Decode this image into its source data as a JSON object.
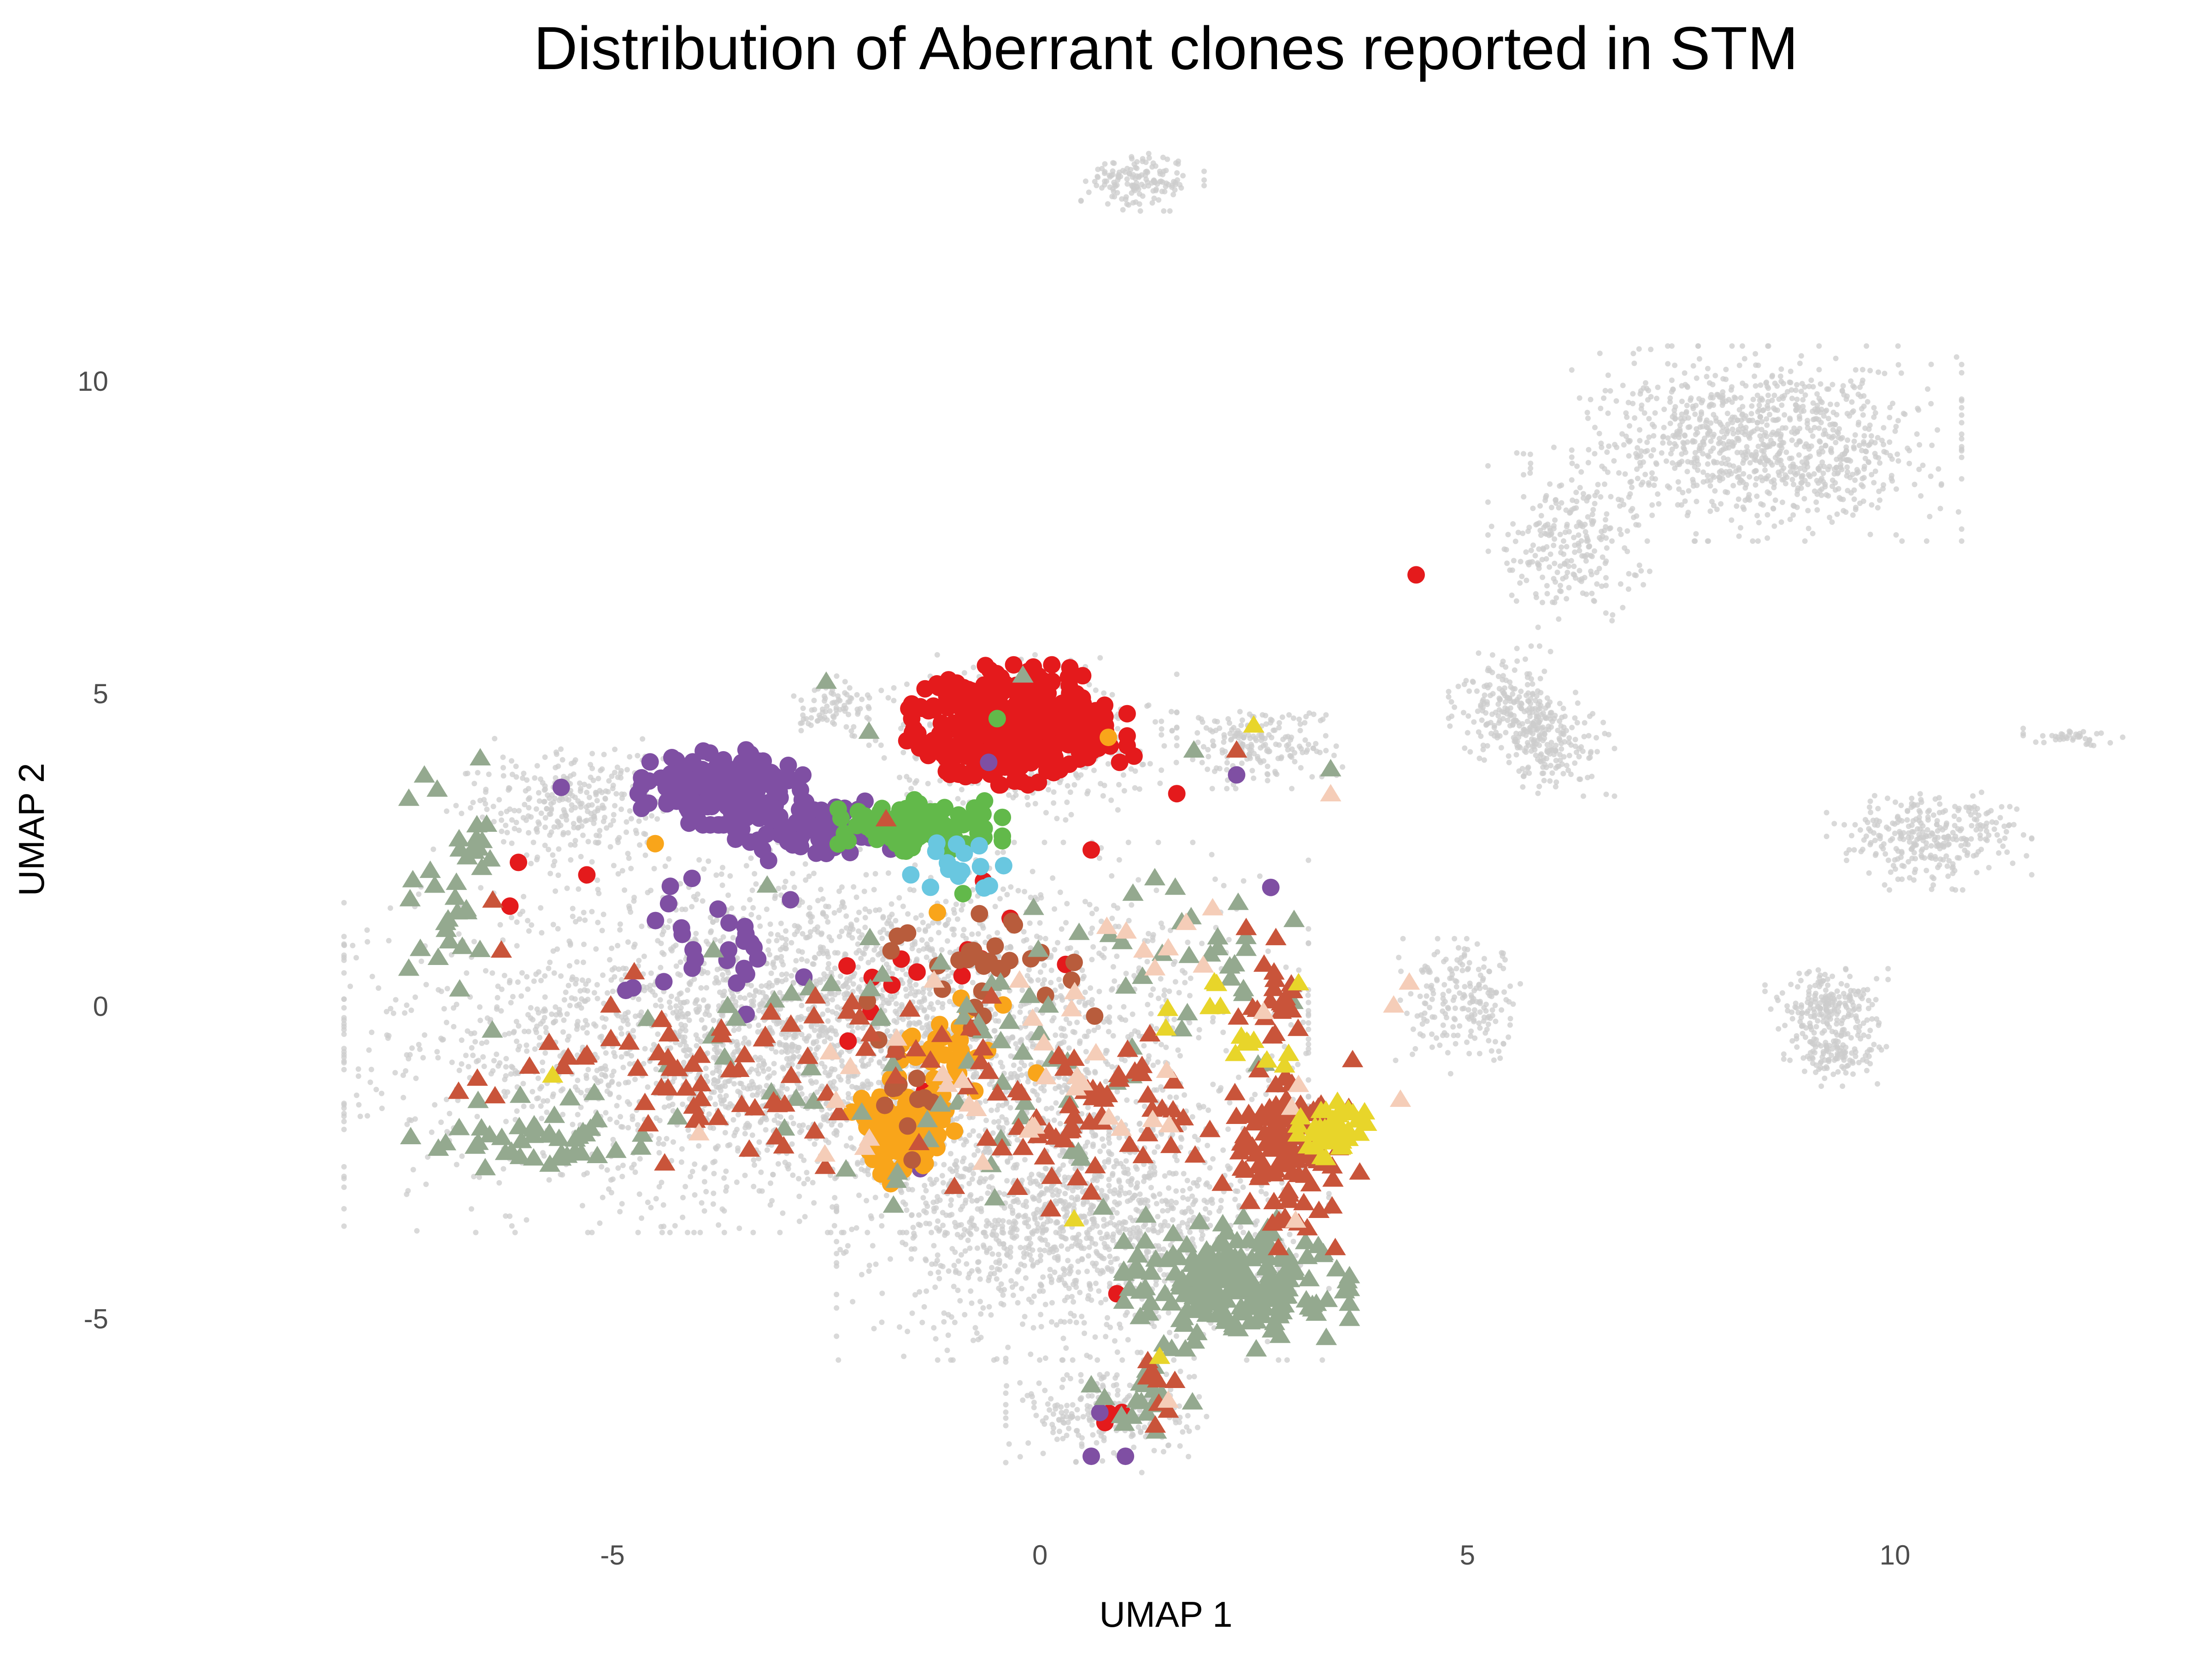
{
  "chart_data": {
    "type": "scatter",
    "title": "Distribution of Aberrant clones reported in STM",
    "xlabel": "UMAP 1",
    "ylabel": "UMAP 2",
    "xlim": [
      -9.9,
      12.9
    ],
    "ylim": [
      -8.6,
      14.4
    ],
    "xticks": [
      -5,
      0,
      5,
      10
    ],
    "xtick_labels": [
      "-5",
      "0",
      "5",
      "10"
    ],
    "yticks": [
      -5,
      0,
      5,
      10
    ],
    "ytick_labels": [
      "-5",
      "0",
      "5",
      "10"
    ],
    "grid": false,
    "legend": "none",
    "background_cells": {
      "color": "#cccccc",
      "clusters": [
        {
          "cx": -2.5,
          "cy": -0.5,
          "rx": 4.7,
          "ry": 2.6,
          "n": 3400
        },
        {
          "cx": 0.5,
          "cy": -3.5,
          "rx": 2.4,
          "ry": 1.8,
          "n": 1300
        },
        {
          "cx": 0.8,
          "cy": -6.5,
          "rx": 1.0,
          "ry": 0.8,
          "n": 250
        },
        {
          "cx": -0.2,
          "cy": 4.3,
          "rx": 1.5,
          "ry": 1.1,
          "n": 450
        },
        {
          "cx": 2.5,
          "cy": 4.2,
          "rx": 0.9,
          "ry": 0.6,
          "n": 200
        },
        {
          "cx": -5.5,
          "cy": 3.2,
          "rx": 1.2,
          "ry": 0.9,
          "n": 300
        },
        {
          "cx": 8.5,
          "cy": 9.0,
          "rx": 1.9,
          "ry": 1.3,
          "n": 1000
        },
        {
          "cx": 6.2,
          "cy": 7.5,
          "rx": 0.8,
          "ry": 1.2,
          "n": 250
        },
        {
          "cx": 5.5,
          "cy": 4.8,
          "rx": 0.6,
          "ry": 0.8,
          "n": 200
        },
        {
          "cx": 6.0,
          "cy": 4.2,
          "rx": 0.6,
          "ry": 0.7,
          "n": 180
        },
        {
          "cx": 1.2,
          "cy": 13.2,
          "rx": 0.6,
          "ry": 0.4,
          "n": 150
        },
        {
          "cx": 10.4,
          "cy": 2.7,
          "rx": 1.0,
          "ry": 0.7,
          "n": 300
        },
        {
          "cx": 9.2,
          "cy": 0.0,
          "rx": 0.6,
          "ry": 0.5,
          "n": 200
        },
        {
          "cx": 9.3,
          "cy": -0.8,
          "rx": 0.5,
          "ry": 0.4,
          "n": 120
        },
        {
          "cx": 12.1,
          "cy": 4.3,
          "rx": 0.5,
          "ry": 0.12,
          "n": 40
        },
        {
          "cx": 5.0,
          "cy": 0.0,
          "rx": 0.7,
          "ry": 0.9,
          "n": 200
        },
        {
          "cx": -2.4,
          "cy": 4.8,
          "rx": 0.4,
          "ry": 0.4,
          "n": 80
        }
      ]
    },
    "series": [
      {
        "color": "#e41a1c",
        "marker": "circle",
        "clusters": [
          {
            "cx": -0.3,
            "cy": 4.5,
            "rx": 1.1,
            "ry": 0.8,
            "n": 420
          },
          {
            "cx": -1.5,
            "cy": 0.5,
            "rx": 1.5,
            "ry": 1.6,
            "n": 14
          },
          {
            "cx": 0.7,
            "cy": -6.5,
            "rx": 0.3,
            "ry": 0.3,
            "n": 3
          }
        ],
        "points": [
          [
            4.4,
            6.9
          ],
          [
            -6.2,
            1.6
          ],
          [
            -6.1,
            2.3
          ],
          [
            -5.3,
            2.1
          ],
          [
            1.6,
            3.4
          ],
          [
            0.9,
            -4.6
          ],
          [
            1.1,
            4.0
          ],
          [
            0.6,
            2.5
          ],
          [
            -1.5,
            4.6
          ]
        ]
      },
      {
        "color": "#7f4fa3",
        "marker": "circle",
        "clusters": [
          {
            "cx": -3.7,
            "cy": 3.5,
            "rx": 0.8,
            "ry": 0.5,
            "n": 220
          },
          {
            "cx": -2.6,
            "cy": 2.8,
            "rx": 0.8,
            "ry": 0.4,
            "n": 90
          },
          {
            "cx": -3.8,
            "cy": 1.2,
            "rx": 1.1,
            "ry": 1.4,
            "n": 28
          }
        ],
        "points": [
          [
            -5.6,
            3.5
          ],
          [
            -4.7,
            3.4
          ],
          [
            2.7,
            1.9
          ],
          [
            2.3,
            3.7
          ],
          [
            0.7,
            -6.5
          ],
          [
            0.6,
            -7.2
          ],
          [
            1.0,
            -7.2
          ],
          [
            -1.4,
            -2.6
          ],
          [
            -0.6,
            3.9
          ]
        ]
      },
      {
        "color": "#62b94a",
        "marker": "circle",
        "clusters": [
          {
            "cx": -1.4,
            "cy": 2.9,
            "rx": 0.8,
            "ry": 0.35,
            "n": 120
          }
        ],
        "points": [
          [
            -0.5,
            4.6
          ],
          [
            -0.9,
            1.8
          ]
        ]
      },
      {
        "color": "#69c7e0",
        "marker": "circle",
        "clusters": [
          {
            "cx": -1.0,
            "cy": 2.2,
            "rx": 0.7,
            "ry": 0.5,
            "n": 16
          }
        ],
        "points": []
      },
      {
        "color": "#f9a51a",
        "marker": "circle",
        "clusters": [
          {
            "cx": -1.6,
            "cy": -2.0,
            "rx": 0.5,
            "ry": 0.7,
            "n": 110
          },
          {
            "cx": -1.0,
            "cy": -0.8,
            "rx": 0.8,
            "ry": 0.8,
            "n": 35
          }
        ],
        "points": [
          [
            0.8,
            4.3
          ],
          [
            -4.5,
            2.6
          ],
          [
            -1.2,
            1.5
          ]
        ]
      },
      {
        "color": "#b85c3c",
        "marker": "circle",
        "clusters": [
          {
            "cx": -0.8,
            "cy": 0.8,
            "rx": 1.2,
            "ry": 1.0,
            "n": 30
          },
          {
            "cx": -1.5,
            "cy": -1.5,
            "rx": 0.5,
            "ry": 0.8,
            "n": 12
          }
        ],
        "points": [
          [
            0.4,
            0.7
          ],
          [
            -0.3,
            1.3
          ]
        ]
      },
      {
        "color": "#94a98f",
        "marker": "triangle",
        "clusters": [
          {
            "cx": 2.3,
            "cy": -4.4,
            "rx": 1.1,
            "ry": 0.9,
            "n": 210
          },
          {
            "cx": -5.8,
            "cy": -2.1,
            "rx": 1.3,
            "ry": 0.6,
            "n": 45
          },
          {
            "cx": -6.8,
            "cy": 1.9,
            "rx": 0.6,
            "ry": 1.9,
            "n": 35
          },
          {
            "cx": -1.0,
            "cy": -0.7,
            "rx": 3.3,
            "ry": 2.2,
            "n": 70
          },
          {
            "cx": 1.2,
            "cy": -6.2,
            "rx": 0.5,
            "ry": 0.9,
            "n": 18
          },
          {
            "cx": 1.5,
            "cy": 1.0,
            "rx": 1.3,
            "ry": 1.0,
            "n": 25
          }
        ],
        "points": [
          [
            -2.5,
            5.2
          ],
          [
            -2.0,
            4.4
          ],
          [
            1.8,
            4.1
          ],
          [
            3.4,
            3.8
          ],
          [
            -0.2,
            5.3
          ],
          [
            -7.2,
            3.7
          ]
        ]
      },
      {
        "color": "#c9543a",
        "marker": "triangle",
        "clusters": [
          {
            "cx": 2.9,
            "cy": -2.3,
            "rx": 0.7,
            "ry": 1.3,
            "n": 110
          },
          {
            "cx": -3.2,
            "cy": -1.0,
            "rx": 3.0,
            "ry": 1.3,
            "n": 80
          },
          {
            "cx": 0.8,
            "cy": -1.8,
            "rx": 1.5,
            "ry": 1.2,
            "n": 60
          },
          {
            "cx": 2.8,
            "cy": 0.3,
            "rx": 0.4,
            "ry": 0.8,
            "n": 22
          },
          {
            "cx": 1.3,
            "cy": -6.1,
            "rx": 0.4,
            "ry": 0.7,
            "n": 8
          }
        ],
        "points": [
          [
            -6.4,
            1.7
          ],
          [
            -6.3,
            0.9
          ],
          [
            2.3,
            4.1
          ],
          [
            -1.8,
            3.0
          ]
        ]
      },
      {
        "color": "#f5cdb8",
        "marker": "triangle",
        "clusters": [
          {
            "cx": 0.0,
            "cy": -1.5,
            "rx": 3.6,
            "ry": 1.6,
            "n": 40
          },
          {
            "cx": 1.5,
            "cy": 1.0,
            "rx": 0.8,
            "ry": 0.6,
            "n": 8
          }
        ],
        "points": [
          [
            3.4,
            3.4
          ],
          [
            1.5,
            -6.3
          ]
        ]
      },
      {
        "color": "#e8d52a",
        "marker": "triangle",
        "clusters": [
          {
            "cx": 3.4,
            "cy": -2.0,
            "rx": 0.35,
            "ry": 0.4,
            "n": 45
          },
          {
            "cx": 2.4,
            "cy": -0.5,
            "rx": 0.9,
            "ry": 1.2,
            "n": 15
          }
        ],
        "points": [
          [
            2.5,
            4.5
          ],
          [
            -5.7,
            -1.1
          ],
          [
            1.4,
            -5.6
          ],
          [
            0.4,
            -3.4
          ]
        ]
      }
    ]
  }
}
